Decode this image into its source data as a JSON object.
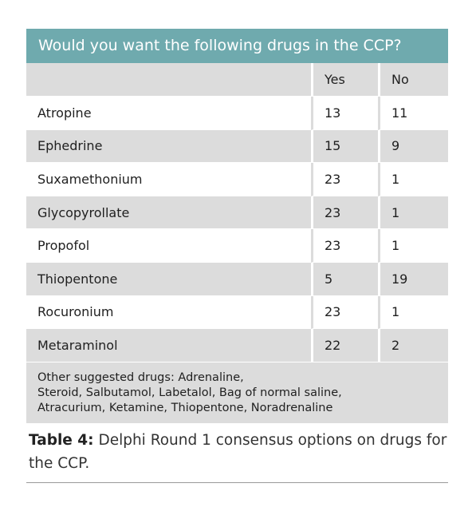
{
  "table": {
    "title": "Would you want the following drugs in the CCP?",
    "headers": [
      "",
      "Yes",
      "No"
    ],
    "rows": [
      {
        "drug": "Atropine",
        "yes": "13",
        "no": "11"
      },
      {
        "drug": "Ephedrine",
        "yes": "15",
        "no": "9"
      },
      {
        "drug": "Suxamethonium",
        "yes": "23",
        "no": "1"
      },
      {
        "drug": "Glycopyrollate",
        "yes": "23",
        "no": "1"
      },
      {
        "drug": "Propofol",
        "yes": "23",
        "no": "1"
      },
      {
        "drug": "Thiopentone",
        "yes": "5",
        "no": "19"
      },
      {
        "drug": "Rocuronium",
        "yes": "23",
        "no": "1"
      },
      {
        "drug": "Metaraminol",
        "yes": "22",
        "no": "2"
      }
    ],
    "footer": {
      "line1": "Other suggested drugs: Adrenaline,",
      "line2": "Steroid, Salbutamol, Labetalol, Bag of normal saline,",
      "line3": "Atracurium, Ketamine, Thiopentone, Noradrenaline"
    }
  },
  "caption": {
    "label": "Table 4:",
    "text": " Delphi Round 1 consensus options on drugs for the CCP."
  },
  "colors": {
    "title_bar": "#6faaae",
    "row_alt": "#dcdcdc"
  }
}
